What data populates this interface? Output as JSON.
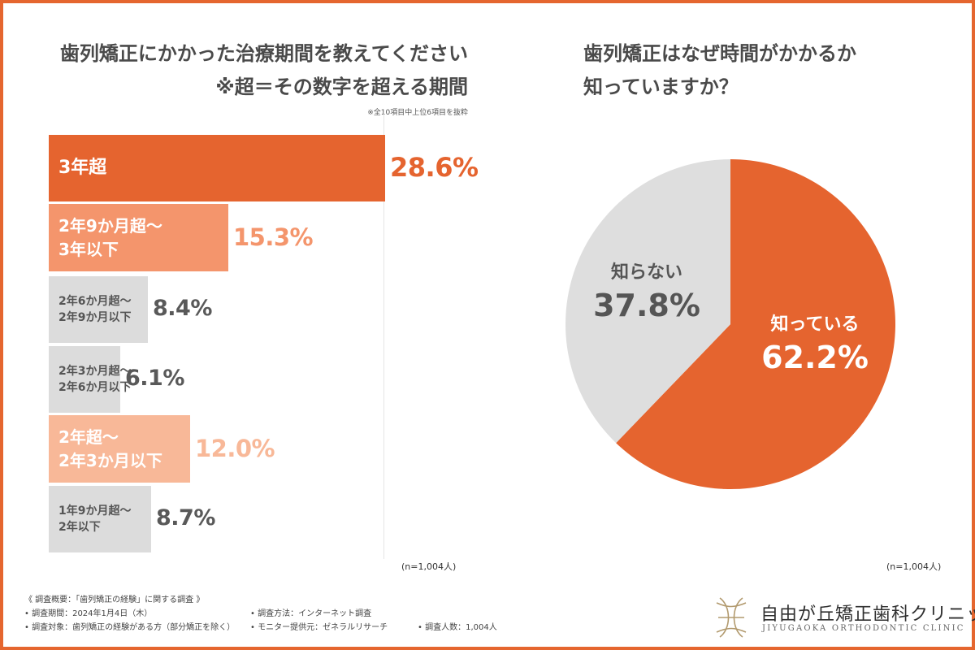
{
  "left": {
    "title_line1": "歯列矯正にかかった治療期間を教えてください",
    "title_line2": "※超＝その数字を超える期間",
    "note": "※全10項目中上位6項目を抜粋",
    "n": "(n=1,004人)"
  },
  "right": {
    "title_line1": "歯列矯正はなぜ時間がかかるか",
    "title_line2": "知っていますか？",
    "n": "(n=1,004人)"
  },
  "chart_data": [
    {
      "type": "bar",
      "orientation": "horizontal",
      "title": "歯列矯正にかかった治療期間を教えてください",
      "categories": [
        {
          "label": [
            "3年超"
          ],
          "value": 28.6,
          "display": "28.6%"
        },
        {
          "label": [
            "2年9か月超〜",
            "3年以下"
          ],
          "value": 15.3,
          "display": "15.3%"
        },
        {
          "label": [
            "2年6か月超〜",
            "2年9か月以下"
          ],
          "value": 8.4,
          "display": "8.4%"
        },
        {
          "label": [
            "2年3か月超〜",
            "2年6か月以下"
          ],
          "value": 6.1,
          "display": "6.1%"
        },
        {
          "label": [
            "2年超〜",
            "2年3か月以下"
          ],
          "value": 12.0,
          "display": "12.0%"
        },
        {
          "label": [
            "1年9か月超〜",
            "2年以下"
          ],
          "value": 8.7,
          "display": "8.7%"
        }
      ],
      "unit": "%",
      "colors": {
        "top1": "#e5642f",
        "top2": "#f4956c",
        "top3": "#f8b898",
        "other": "#dcdcdc"
      }
    },
    {
      "type": "pie",
      "title": "歯列矯正はなぜ時間がかかるか知っていますか？",
      "slices": [
        {
          "label": "知っている",
          "value": 62.2,
          "display": "62.2%",
          "color": "#e5642f"
        },
        {
          "label": "知らない",
          "value": 37.8,
          "display": "37.8%",
          "color": "#dedede"
        }
      ]
    }
  ],
  "footer": {
    "title": "《 調査概要：「歯列矯正の経験」に関する調査 》",
    "period": "• 調査期間：2024年1月4日（木）",
    "method": "• 調査方法：インターネット調査",
    "target": "• 調査対象：歯列矯正の経験がある方（部分矯正を除く）",
    "provider": "• モニター提供元：ゼネラルリサーチ",
    "count": "• 調査人数：1,004人"
  },
  "logo": {
    "name": "自由が丘矯正歯科クリニック",
    "sub": "JIYUGAOKA ORTHODONTIC CLINIC",
    "icon": "tooth-logo-icon",
    "color": "#b29a6e"
  }
}
